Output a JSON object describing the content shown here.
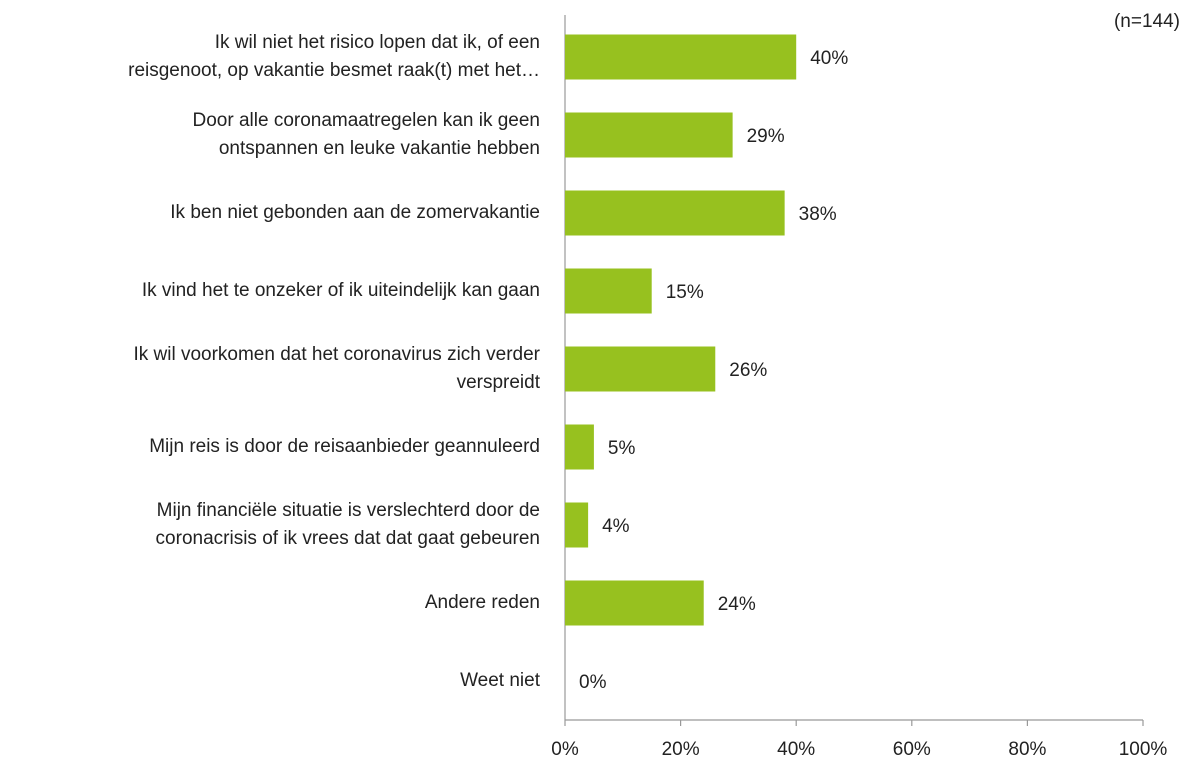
{
  "chart_data": {
    "type": "bar",
    "orientation": "horizontal",
    "subtitle": "(n=144)",
    "categories": [
      "Ik wil niet het risico lopen dat ik, of een\nreisgenoot, op vakantie besmet raak(t) met het…",
      "Door alle coronamaatregelen kan ik geen\nontspannen en leuke vakantie hebben",
      "Ik ben niet gebonden aan de zomervakantie",
      "Ik vind het te onzeker of ik uiteindelijk kan gaan",
      "Ik wil voorkomen dat het coronavirus zich verder\nverspreidt",
      "Mijn reis is door de reisaanbieder geannuleerd",
      "Mijn financiële situatie is verslechterd door de\ncoronacrisis of ik vrees dat dat gaat gebeuren",
      "Andere reden",
      "Weet niet"
    ],
    "values": [
      40,
      29,
      38,
      15,
      26,
      5,
      4,
      24,
      0
    ],
    "value_labels": [
      "40%",
      "29%",
      "38%",
      "15%",
      "26%",
      "5%",
      "4%",
      "24%",
      "0%"
    ],
    "color": "#97c11f",
    "xlim": [
      0,
      100
    ],
    "xticks": [
      {
        "value": 0,
        "label": "0%"
      },
      {
        "value": 20,
        "label": "20%"
      },
      {
        "value": 40,
        "label": "40%"
      },
      {
        "value": 60,
        "label": "60%"
      },
      {
        "value": 80,
        "label": "80%"
      },
      {
        "value": 100,
        "label": "100%"
      }
    ],
    "grid": false
  }
}
